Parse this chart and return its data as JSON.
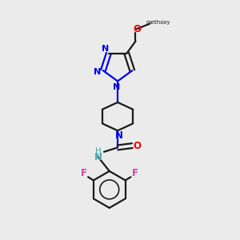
{
  "bg_color": "#ebebeb",
  "bond_color": "#1a1a1a",
  "N_color": "#0000ee",
  "O_color": "#ee0000",
  "F_color": "#cc44aa",
  "NH_color": "#44aaaa",
  "line_width": 1.6,
  "figsize": [
    3.0,
    3.0
  ],
  "dpi": 100,
  "xlim": [
    0,
    10
  ],
  "ylim": [
    0,
    10
  ]
}
